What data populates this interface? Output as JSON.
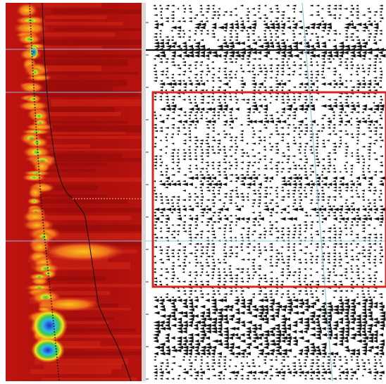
{
  "figure": {
    "left_panel": "velocity-semblance-spectrum",
    "right_panel": "seismic-cmp-gather",
    "highlight_box_color": "#d8261f",
    "semblance_colors": {
      "low": "#b81212",
      "mid": "#e4471c",
      "high": "#f7d21a",
      "peak": "#36c24a",
      "max": "#1639c4"
    },
    "picked_velocity_curve": "dotted-black",
    "reference_curve": "solid-black",
    "horizon_line_color": "#8fb0d6",
    "gather_trace_color": "#111111",
    "cyan_guide_color": "#6fc7d6"
  }
}
